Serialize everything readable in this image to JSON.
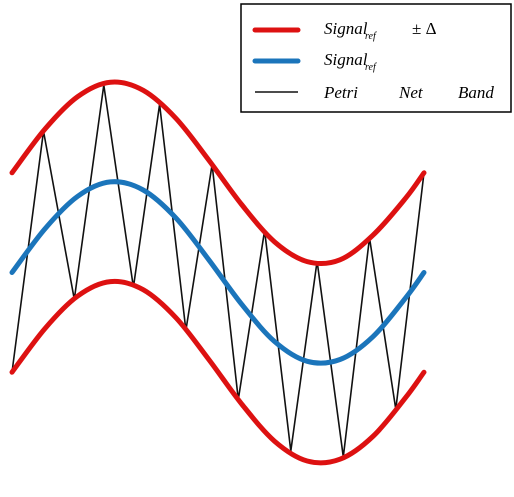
{
  "chart_data": {
    "type": "line",
    "title": "",
    "xlabel": "",
    "ylabel": "",
    "axes_visible": false,
    "grid": false,
    "legend_position": "top-right",
    "x_range": [
      0,
      6.28
    ],
    "y_range": [
      -2.4,
      2.4
    ],
    "delta": 1.1,
    "colors": {
      "band": "#dd1111",
      "reference": "#1b75bb",
      "petri": "#111111"
    },
    "legend": {
      "band": {
        "label": "Signal",
        "subscript": "ref",
        "suffix": "± Δ"
      },
      "reference": {
        "label": "Signal",
        "subscript": "ref"
      },
      "petri": {
        "words": [
          "Petri",
          "Net",
          "Band"
        ]
      }
    },
    "series": [
      {
        "key": "upper",
        "x": [
          0,
          0.5,
          1,
          1.5,
          2,
          2.5,
          3,
          3.5,
          4,
          4.5,
          5,
          5.5,
          6,
          6.28
        ],
        "y": [
          1.1,
          1.58,
          1.94,
          2.1,
          2.01,
          1.7,
          1.24,
          0.75,
          0.34,
          0.12,
          0.14,
          0.41,
          0.82,
          1.1
        ]
      },
      {
        "key": "reference",
        "x": [
          0,
          0.5,
          1,
          1.5,
          2,
          2.5,
          3,
          3.5,
          4,
          4.5,
          5,
          5.5,
          6,
          6.28
        ],
        "y": [
          0,
          0.48,
          0.84,
          1.0,
          0.91,
          0.6,
          0.14,
          -0.35,
          -0.76,
          -0.98,
          -0.96,
          -0.71,
          -0.28,
          0
        ]
      },
      {
        "key": "lower",
        "x": [
          0,
          0.5,
          1,
          1.5,
          2,
          2.5,
          3,
          3.5,
          4,
          4.5,
          5,
          5.5,
          6,
          6.28
        ],
        "y": [
          -1.1,
          -0.62,
          -0.26,
          -0.1,
          -0.19,
          -0.5,
          -0.96,
          -1.45,
          -1.86,
          -2.08,
          -2.06,
          -1.81,
          -1.38,
          -1.1
        ]
      }
    ],
    "petri_net_vertices": [
      {
        "x": 0.0,
        "side": "lower"
      },
      {
        "x": 0.48,
        "side": "upper"
      },
      {
        "x": 0.95,
        "side": "lower"
      },
      {
        "x": 1.4,
        "side": "upper"
      },
      {
        "x": 1.85,
        "side": "lower"
      },
      {
        "x": 2.25,
        "side": "upper"
      },
      {
        "x": 2.65,
        "side": "lower"
      },
      {
        "x": 3.05,
        "side": "upper"
      },
      {
        "x": 3.45,
        "side": "lower"
      },
      {
        "x": 3.85,
        "side": "upper"
      },
      {
        "x": 4.25,
        "side": "lower"
      },
      {
        "x": 4.65,
        "side": "upper"
      },
      {
        "x": 5.05,
        "side": "lower"
      },
      {
        "x": 5.45,
        "side": "upper"
      },
      {
        "x": 5.85,
        "side": "lower"
      },
      {
        "x": 6.28,
        "side": "upper"
      }
    ]
  }
}
